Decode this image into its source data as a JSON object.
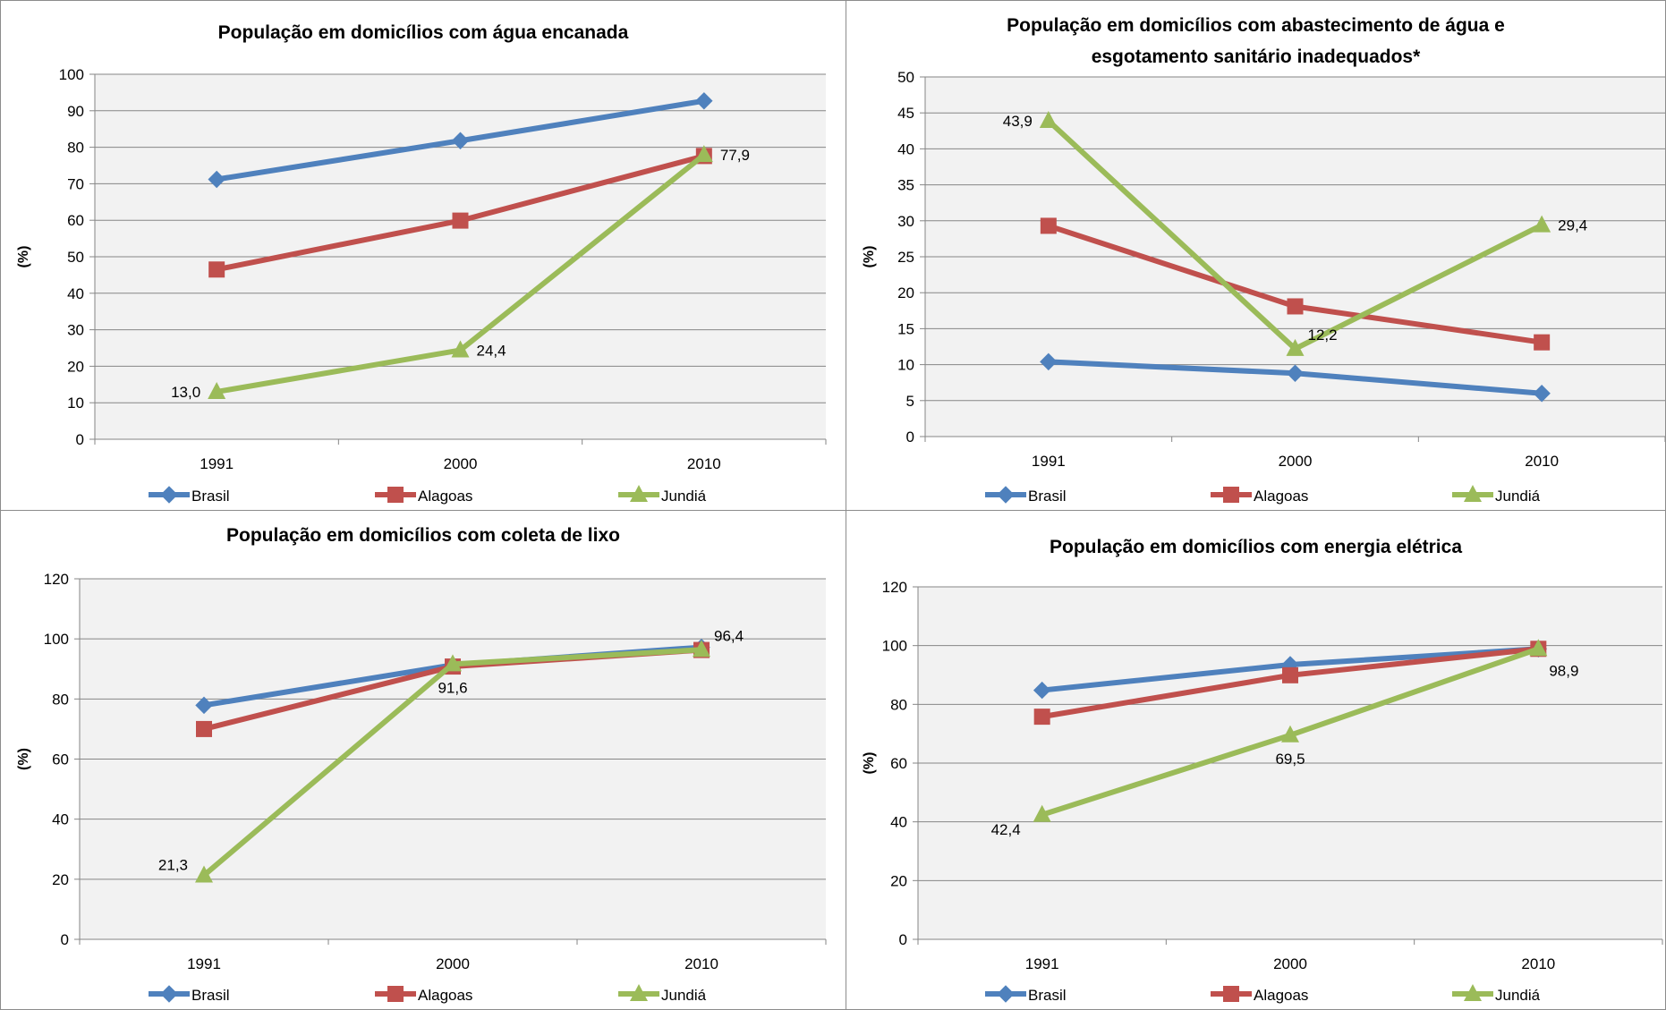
{
  "chart_data": [
    {
      "type": "line",
      "title": [
        "População em domicílios com água encanada"
      ],
      "ylabel": "(%)",
      "ylim": [
        0,
        100
      ],
      "ystep": 10,
      "categories": [
        "1991",
        "2000",
        "2010"
      ],
      "series": [
        {
          "name": "Brasil",
          "values": [
            71.2,
            81.8,
            92.7
          ],
          "color": "#4f81bd",
          "marker": "diamond"
        },
        {
          "name": "Alagoas",
          "values": [
            46.5,
            59.9,
            77.6
          ],
          "color": "#c0504d",
          "marker": "square"
        },
        {
          "name": "Jundiá",
          "values": [
            13.0,
            24.4,
            77.9
          ],
          "color": "#9bbb59",
          "marker": "triangle"
        }
      ],
      "data_labels": [
        {
          "series": 2,
          "index": 0,
          "text": "13,0",
          "pos": "left"
        },
        {
          "series": 2,
          "index": 1,
          "text": "24,4",
          "pos": "right"
        },
        {
          "series": 2,
          "index": 2,
          "text": "77,9",
          "pos": "right"
        }
      ],
      "legend": "bottom",
      "grid": true
    },
    {
      "type": "line",
      "title": [
        "População em domicílios com abastecimento de água e",
        "esgotamento sanitário inadequados*"
      ],
      "ylabel": "(%)",
      "ylim": [
        0,
        50
      ],
      "ystep": 5,
      "categories": [
        "1991",
        "2000",
        "2010"
      ],
      "series": [
        {
          "name": "Brasil",
          "values": [
            10.4,
            8.8,
            6.0
          ],
          "color": "#4f81bd",
          "marker": "diamond"
        },
        {
          "name": "Alagoas",
          "values": [
            29.3,
            18.1,
            13.1
          ],
          "color": "#c0504d",
          "marker": "square"
        },
        {
          "name": "Jundiá",
          "values": [
            43.9,
            12.2,
            29.4
          ],
          "color": "#9bbb59",
          "marker": "triangle"
        }
      ],
      "data_labels": [
        {
          "series": 2,
          "index": 0,
          "text": "43,9",
          "pos": "left"
        },
        {
          "series": 2,
          "index": 1,
          "text": "12,2",
          "pos": "upright"
        },
        {
          "series": 2,
          "index": 2,
          "text": "29,4",
          "pos": "right"
        }
      ],
      "legend": "bottom",
      "grid": true
    },
    {
      "type": "line",
      "title": [
        "População em domicílios com coleta de lixo"
      ],
      "ylabel": "(%)",
      "ylim": [
        0,
        120
      ],
      "ystep": 20,
      "categories": [
        "1991",
        "2000",
        "2010"
      ],
      "series": [
        {
          "name": "Brasil",
          "values": [
            77.9,
            91.3,
            97.2
          ],
          "color": "#4f81bd",
          "marker": "diamond"
        },
        {
          "name": "Alagoas",
          "values": [
            70.0,
            90.8,
            96.3
          ],
          "color": "#c0504d",
          "marker": "square"
        },
        {
          "name": "Jundiá",
          "values": [
            21.3,
            91.6,
            96.4
          ],
          "color": "#9bbb59",
          "marker": "triangle"
        }
      ],
      "data_labels": [
        {
          "series": 2,
          "index": 0,
          "text": "21,3",
          "pos": "upleft"
        },
        {
          "series": 2,
          "index": 1,
          "text": "91,6",
          "pos": "below"
        },
        {
          "series": 2,
          "index": 2,
          "text": "96,4",
          "pos": "upright"
        }
      ],
      "legend": "bottom",
      "grid": true
    },
    {
      "type": "line",
      "title": [
        "População em domicílios com energia elétrica"
      ],
      "ylabel": "(%)",
      "ylim": [
        0,
        120
      ],
      "ystep": 20,
      "categories": [
        "1991",
        "2000",
        "2010"
      ],
      "series": [
        {
          "name": "Brasil",
          "values": [
            84.8,
            93.5,
            98.9
          ],
          "color": "#4f81bd",
          "marker": "diamond"
        },
        {
          "name": "Alagoas",
          "values": [
            75.8,
            89.9,
            98.9
          ],
          "color": "#c0504d",
          "marker": "square"
        },
        {
          "name": "Jundiá",
          "values": [
            42.4,
            69.5,
            98.9
          ],
          "color": "#9bbb59",
          "marker": "triangle"
        }
      ],
      "data_labels": [
        {
          "series": 2,
          "index": 0,
          "text": "42,4",
          "pos": "belowleft"
        },
        {
          "series": 2,
          "index": 1,
          "text": "69,5",
          "pos": "below"
        },
        {
          "series": 2,
          "index": 2,
          "text": "98,9",
          "pos": "belowright"
        }
      ],
      "legend": "bottom",
      "grid": true
    }
  ]
}
